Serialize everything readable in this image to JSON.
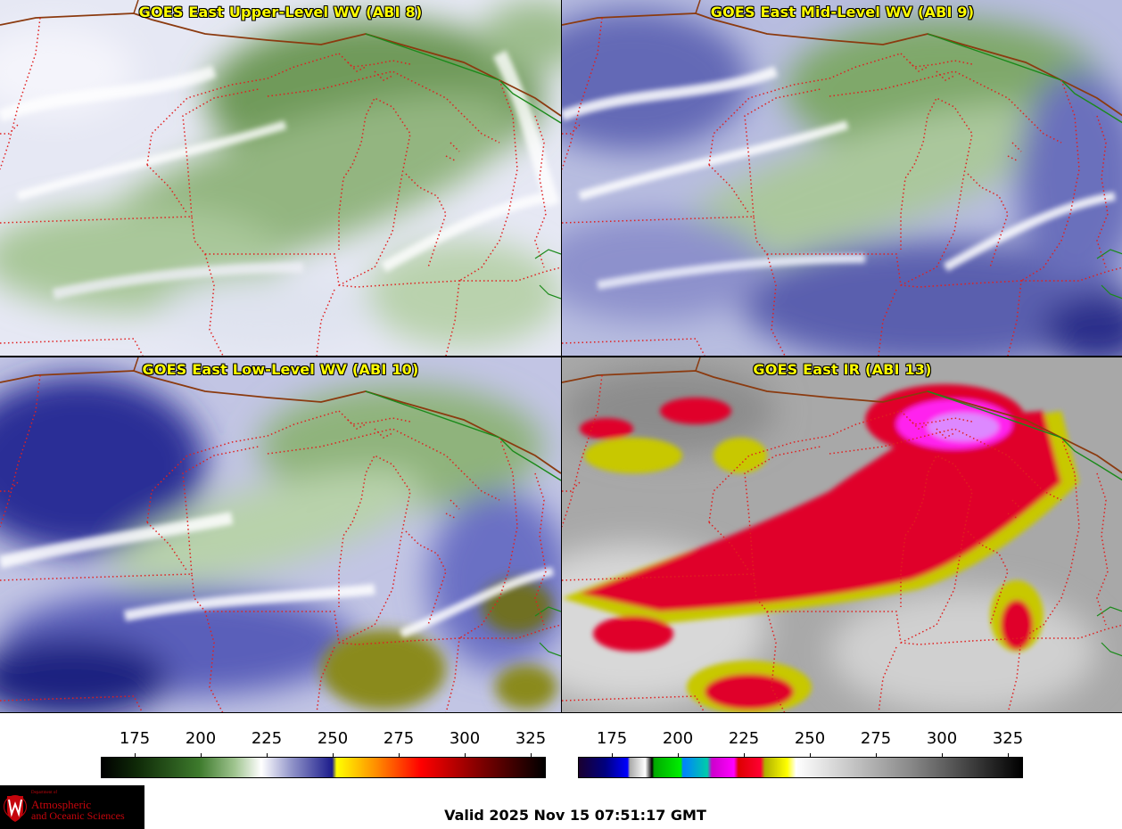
{
  "panels": [
    {
      "title": "GOES East Upper-Level WV (ABI 8)"
    },
    {
      "title": "GOES East Mid-Level WV (ABI 9)"
    },
    {
      "title": "GOES East Low-Level WV (ABI 10)"
    },
    {
      "title": "GOES East IR (ABI 13)"
    }
  ],
  "colorbars": [
    {
      "ticks": [
        "175",
        "200",
        "225",
        "250",
        "275",
        "300",
        "325"
      ]
    },
    {
      "ticks": [
        "175",
        "200",
        "225",
        "250",
        "275",
        "300",
        "325"
      ]
    }
  ],
  "logo": {
    "dept_small": "Department of",
    "line1": "Atmospheric",
    "line2": "and Oceanic Sciences"
  },
  "valid_time": "Valid 2025 Nov 15 07:51:17 GMT",
  "colors": {
    "title_text": "#ffff00",
    "state_borders": "#e02020",
    "coastline": "#8b3a0f",
    "national_border": "#1a8a1a"
  }
}
